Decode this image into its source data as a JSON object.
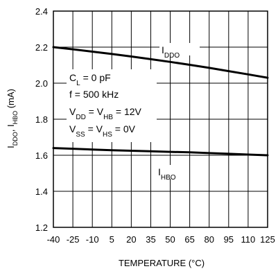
{
  "chart_data": {
    "type": "line",
    "xlabel": "TEMPERATURE (°C)",
    "ylabel": "Iₓ",
    "ylabel_parts": {
      "i1": "I",
      "s1": "DDO",
      "sep": ", I",
      "s2": "HBO",
      "tail": " (mA)"
    },
    "xlim": [
      -40,
      125
    ],
    "ylim": [
      1.2,
      2.4
    ],
    "x_tick_labels": [
      "-40",
      "-25",
      "-10",
      "5",
      "20",
      "35",
      "50",
      "65",
      "80",
      "95",
      "110",
      "125"
    ],
    "y_tick_labels": [
      "1.2",
      "1.4",
      "1.6",
      "1.8",
      "2.0",
      "2.2",
      "2.4"
    ],
    "grid": true,
    "series": [
      {
        "label_main": "I",
        "label_sub": "DDO",
        "x": [
          -40,
          -25,
          -10,
          5,
          20,
          35,
          50,
          65,
          80,
          95,
          110,
          125
        ],
        "y": [
          2.2,
          2.188,
          2.175,
          2.162,
          2.148,
          2.133,
          2.118,
          2.102,
          2.085,
          2.067,
          2.049,
          2.03
        ]
      },
      {
        "label_main": "I",
        "label_sub": "HBO",
        "x": [
          -40,
          -25,
          -10,
          5,
          20,
          35,
          50,
          65,
          80,
          95,
          110,
          125
        ],
        "y": [
          1.64,
          1.636,
          1.632,
          1.628,
          1.625,
          1.622,
          1.619,
          1.616,
          1.612,
          1.608,
          1.604,
          1.6
        ]
      }
    ],
    "annotations": [
      {
        "a": "C",
        "b": "L",
        "c": " = 0 pF"
      },
      {
        "a": "f  = 500 kHz",
        "b": "",
        "c": ""
      },
      {
        "a": "V",
        "b": "DD",
        "c": " = V",
        "d": "HB",
        "e": " = 12V"
      },
      {
        "a": "V",
        "b": "SS",
        "c": " = V",
        "d": "HS",
        "e": " = 0V"
      }
    ],
    "colors": {
      "line": "#000000",
      "grid": "#000000",
      "background": "#ffffff"
    }
  }
}
